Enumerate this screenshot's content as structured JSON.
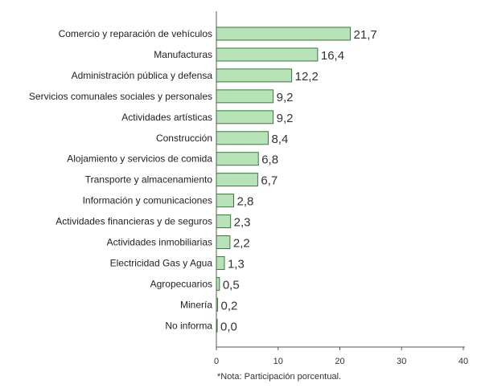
{
  "chart_data": {
    "type": "bar",
    "orientation": "horizontal",
    "categories": [
      "Comercio y reparación de vehículos",
      "Manufacturas",
      "Administración pública y defensa",
      "Servicios comunales  sociales y personales",
      "Actividades  artísticas",
      "Construcción",
      "Alojamiento y servicios de comida",
      "Transporte  y almacenamiento",
      "Información y comunicaciones",
      "Actividades financieras y de seguros",
      "Actividades inmobiliarias",
      "Electricidad  Gas y Agua",
      "Agropecuarios",
      "Minería",
      "No informa"
    ],
    "values": [
      21.7,
      16.4,
      12.2,
      9.2,
      9.2,
      8.4,
      6.8,
      6.7,
      2.8,
      2.3,
      2.2,
      1.3,
      0.5,
      0.2,
      0.0
    ],
    "value_labels": [
      "21,7",
      "16,4",
      "12,2",
      "9,2",
      "9,2",
      "8,4",
      "6,8",
      "6,7",
      "2,8",
      "2,3",
      "2,2",
      "1,3",
      "0,5",
      "0,2",
      "0,0"
    ],
    "xlim": [
      0,
      40
    ],
    "xticks": [
      0,
      10,
      20,
      30,
      40
    ],
    "xtick_labels": [
      "0",
      "10",
      "20",
      "30",
      "40"
    ],
    "note": "*Nota: Participación porcentual.",
    "grid": false,
    "legend": "none",
    "bar_color": "#b8e2b8",
    "bar_edge_color": "#3a7a3a"
  }
}
